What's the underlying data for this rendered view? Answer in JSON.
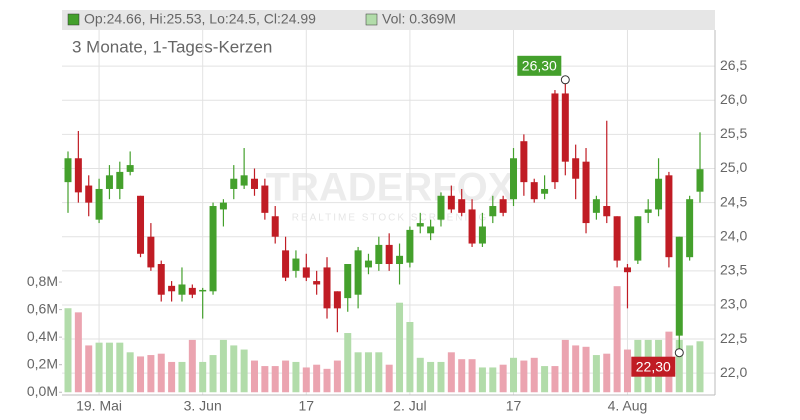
{
  "chart_data": {
    "type": "candlestick",
    "subtitle": "3 Monate, 1-Tages-Kerzen",
    "legend": {
      "ohlc": "Op:24.66, Hi:25.53, Lo:24.5, Cl:24.99",
      "volume": "Vol: 0.369M"
    },
    "watermark": "TRADERFOX",
    "watermark_sub": "REALTIME STOCK SCREENING",
    "up_color": "#44a02c",
    "down_color": "#c01c24",
    "volume_up_color": "#b2dcaa",
    "volume_down_color": "#eba4b0",
    "categories": [
      null,
      null,
      null,
      "19. Mai",
      null,
      null,
      null,
      null,
      null,
      null,
      null,
      null,
      null,
      "3. Jun",
      null,
      null,
      null,
      null,
      null,
      null,
      null,
      null,
      null,
      "17",
      null,
      null,
      null,
      null,
      null,
      null,
      null,
      null,
      null,
      "2. Jul",
      null,
      null,
      null,
      null,
      null,
      null,
      null,
      null,
      null,
      "17",
      null,
      null,
      null,
      null,
      null,
      null,
      null,
      null,
      null,
      null,
      "4. Aug",
      null,
      null,
      null,
      null,
      null,
      null,
      null
    ],
    "open": [
      24.8,
      25.15,
      24.75,
      24.25,
      24.7,
      24.7,
      24.95,
      24.6,
      24.0,
      23.6,
      23.28,
      23.15,
      23.25,
      23.2,
      23.2,
      24.4,
      24.7,
      24.75,
      24.85,
      24.75,
      24.3,
      23.8,
      23.5,
      23.55,
      23.35,
      23.55,
      23.2,
      23.1,
      23.15,
      23.55,
      23.6,
      23.88,
      23.6,
      23.62,
      24.15,
      24.05,
      24.25,
      24.6,
      24.55,
      24.4,
      23.9,
      24.3,
      24.55,
      24.55,
      25.4,
      24.8,
      24.63,
      26.1,
      26.1,
      25.15,
      25.1,
      24.35,
      24.45,
      24.3,
      23.55,
      23.65,
      24.35,
      24.4,
      24.9,
      22.55,
      23.7,
      24.66
    ],
    "high": [
      25.25,
      25.55,
      24.9,
      24.85,
      25.05,
      25.1,
      25.25,
      24.6,
      24.2,
      23.65,
      23.35,
      23.55,
      23.3,
      23.25,
      24.5,
      24.55,
      25.05,
      25.3,
      25.0,
      24.85,
      24.45,
      24.0,
      23.8,
      23.75,
      23.5,
      23.7,
      23.2,
      23.6,
      23.85,
      23.75,
      24.0,
      24.05,
      23.9,
      24.15,
      24.35,
      24.25,
      24.65,
      24.75,
      24.7,
      24.55,
      24.35,
      24.6,
      24.6,
      25.3,
      25.5,
      24.85,
      24.9,
      26.15,
      26.3,
      25.35,
      25.3,
      24.6,
      25.7,
      24.3,
      23.6,
      24.3,
      24.55,
      25.15,
      24.95,
      24.0,
      24.6,
      25.53
    ],
    "low": [
      24.35,
      24.5,
      24.3,
      24.2,
      24.55,
      24.55,
      24.9,
      23.7,
      23.5,
      23.05,
      23.05,
      23.05,
      23.1,
      22.8,
      23.15,
      24.15,
      24.55,
      24.7,
      24.6,
      24.25,
      23.9,
      23.35,
      23.4,
      23.35,
      23.15,
      22.8,
      22.6,
      22.9,
      22.95,
      23.45,
      23.5,
      23.5,
      23.3,
      23.55,
      24.05,
      23.95,
      24.15,
      24.35,
      24.3,
      23.85,
      23.85,
      24.2,
      24.3,
      24.45,
      24.6,
      24.5,
      24.55,
      24.7,
      24.9,
      24.55,
      24.05,
      24.25,
      24.2,
      23.55,
      22.95,
      23.6,
      24.2,
      24.3,
      23.55,
      22.3,
      23.65,
      24.5
    ],
    "close": [
      25.15,
      24.65,
      24.5,
      24.7,
      24.9,
      24.95,
      25.05,
      23.75,
      23.55,
      23.15,
      23.2,
      23.3,
      23.15,
      23.22,
      24.45,
      24.5,
      24.85,
      24.9,
      24.7,
      24.35,
      24.0,
      23.4,
      23.68,
      23.4,
      23.3,
      22.95,
      22.95,
      23.6,
      23.8,
      23.65,
      23.88,
      23.6,
      23.72,
      24.1,
      24.2,
      24.15,
      24.6,
      24.4,
      24.35,
      23.9,
      24.15,
      24.45,
      24.35,
      25.15,
      24.8,
      24.55,
      24.7,
      24.8,
      25.1,
      24.85,
      24.2,
      24.55,
      24.3,
      23.65,
      23.48,
      24.3,
      24.4,
      24.85,
      23.7,
      24.0,
      24.55,
      24.99
    ],
    "volume": [
      0.61,
      0.58,
      0.34,
      0.36,
      0.36,
      0.36,
      0.29,
      0.26,
      0.27,
      0.28,
      0.22,
      0.22,
      0.38,
      0.22,
      0.27,
      0.38,
      0.34,
      0.31,
      0.23,
      0.19,
      0.19,
      0.23,
      0.22,
      0.18,
      0.2,
      0.17,
      0.23,
      0.43,
      0.29,
      0.29,
      0.29,
      0.2,
      0.65,
      0.51,
      0.25,
      0.22,
      0.22,
      0.29,
      0.24,
      0.24,
      0.18,
      0.18,
      0.2,
      0.25,
      0.23,
      0.25,
      0.19,
      0.19,
      0.38,
      0.34,
      0.33,
      0.27,
      0.28,
      0.77,
      0.31,
      0.38,
      0.38,
      0.38,
      0.44,
      0.38,
      0.34,
      0.37
    ],
    "ylim": [
      21.68,
      27.03
    ],
    "yticks": [
      {
        "value": 22.0,
        "label": "22,0"
      },
      {
        "value": 22.5,
        "label": "22,5"
      },
      {
        "value": 23.0,
        "label": "23,0"
      },
      {
        "value": 23.5,
        "label": "23,5"
      },
      {
        "value": 24.0,
        "label": "24,0"
      },
      {
        "value": 24.5,
        "label": "24,5"
      },
      {
        "value": 25.0,
        "label": "25,0"
      },
      {
        "value": 25.5,
        "label": "25,5"
      },
      {
        "value": 26.0,
        "label": "26,0"
      },
      {
        "value": 26.5,
        "label": "26,5"
      }
    ],
    "y2lim": [
      -0.02,
      2.63
    ],
    "y2ticks": [
      {
        "value": 0,
        "label": "0,0M"
      },
      {
        "value": 0.2,
        "label": "0,2M"
      },
      {
        "value": 0.4,
        "label": "0,4M"
      },
      {
        "value": 0.6,
        "label": "0,6M"
      },
      {
        "value": 0.8,
        "label": "0,8M"
      }
    ],
    "annotations": [
      {
        "label": "26,30",
        "value": 26.3,
        "kind": "high"
      },
      {
        "label": "22,30",
        "value": 22.3,
        "kind": "low"
      }
    ],
    "grid": true
  }
}
